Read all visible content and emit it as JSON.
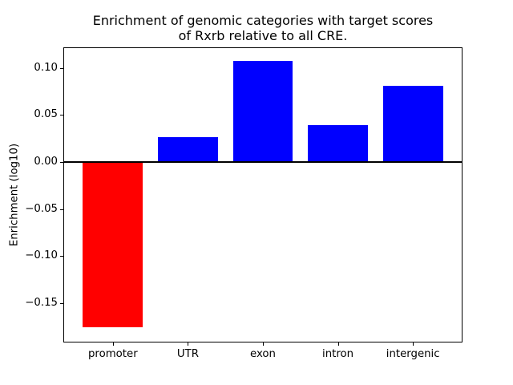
{
  "title": {
    "line1": "Enrichment of genomic categories with target scores",
    "line2": "of Rxrb relative to all CRE."
  },
  "chart_data": {
    "type": "bar",
    "title": "Enrichment of genomic categories with target scores\nof Rxrb relative to all CRE.",
    "categories": [
      "promoter",
      "UTR",
      "exon",
      "intron",
      "intergenic"
    ],
    "values": [
      -0.176,
      0.026,
      0.107,
      0.039,
      0.081
    ],
    "bar_colors": [
      "#ff0000",
      "#0000ff",
      "#0000ff",
      "#0000ff",
      "#0000ff"
    ],
    "xlabel": "",
    "ylabel": "Enrichment (log10)",
    "ylim": [
      -0.191,
      0.121
    ],
    "xlim": [
      -0.65,
      4.65
    ],
    "bar_width_fraction": 0.8,
    "yticks": [
      0.1,
      0.05,
      0.0,
      -0.05,
      -0.1,
      -0.15
    ],
    "ytick_labels": [
      "0.10",
      "0.05",
      "0.00",
      "−0.05",
      "−0.10",
      "−0.15"
    ],
    "zero_line": true,
    "grid": false,
    "legend": null
  },
  "colors": {
    "positive_bar": "#0000ff",
    "negative_bar": "#ff0000",
    "axis": "#000000",
    "background": "#ffffff"
  }
}
